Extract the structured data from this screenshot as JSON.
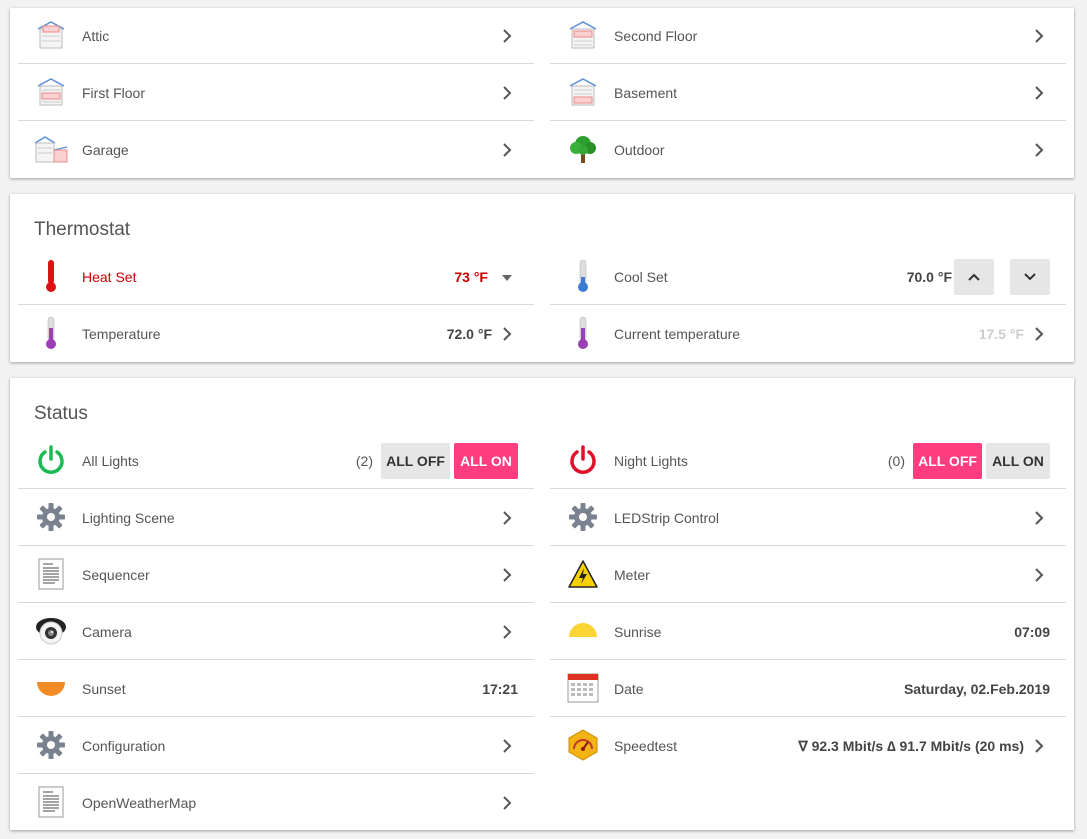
{
  "floors": {
    "items": [
      {
        "label": "Attic",
        "icon": "attic-house-icon"
      },
      {
        "label": "Second Floor",
        "icon": "second-floor-house-icon"
      },
      {
        "label": "First Floor",
        "icon": "first-floor-house-icon"
      },
      {
        "label": "Basement",
        "icon": "basement-house-icon"
      },
      {
        "label": "Garage",
        "icon": "garage-icon"
      },
      {
        "label": "Outdoor",
        "icon": "tree-icon"
      }
    ]
  },
  "thermostat": {
    "title": "Thermostat",
    "heat_set": {
      "label": "Heat Set",
      "value": "73 °F",
      "color": "#cc0000"
    },
    "cool_set": {
      "label": "Cool Set",
      "value": "70.0 °F"
    },
    "temperature": {
      "label": "Temperature",
      "value": "72.0 °F"
    },
    "current_temperature": {
      "label": "Current temperature",
      "value": "17.5 °F"
    }
  },
  "status": {
    "title": "Status",
    "all_lights": {
      "label": "All Lights",
      "count": "(2)",
      "off_label": "ALL OFF",
      "on_label": "ALL ON"
    },
    "night_lights": {
      "label": "Night Lights",
      "count": "(0)",
      "off_label": "ALL OFF",
      "on_label": "ALL ON"
    },
    "lighting_scene": {
      "label": "Lighting Scene"
    },
    "ledstrip_control": {
      "label": "LEDStrip Control"
    },
    "sequencer": {
      "label": "Sequencer"
    },
    "meter": {
      "label": "Meter"
    },
    "camera": {
      "label": "Camera"
    },
    "sunrise": {
      "label": "Sunrise",
      "value": "07:09"
    },
    "sunset": {
      "label": "Sunset",
      "value": "17:21"
    },
    "date": {
      "label": "Date",
      "value": "Saturday, 02.Feb.2019"
    },
    "configuration": {
      "label": "Configuration"
    },
    "speedtest": {
      "label": "Speedtest",
      "value": "∇ 92.3 Mbit/s ∆ 91.7 Mbit/s (20 ms)"
    },
    "openweathermap": {
      "label": "OpenWeatherMap"
    }
  },
  "colors": {
    "accent": "#ff3d7f",
    "power_on": "#1db954",
    "power_off": "#e0102a"
  }
}
